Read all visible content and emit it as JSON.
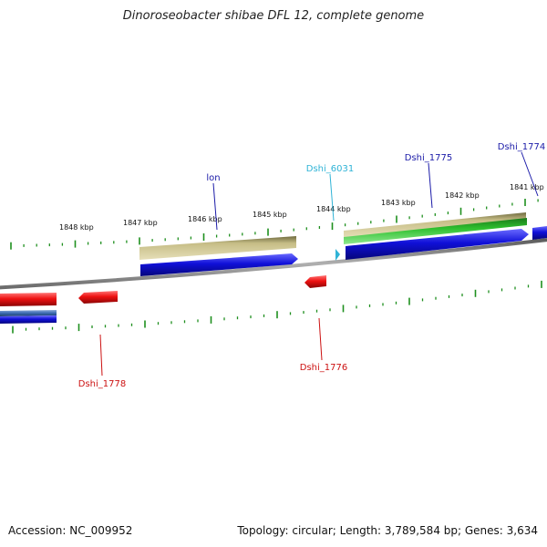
{
  "title": "Dinoroseobacter shibae DFL 12, complete genome",
  "footer": {
    "accession": "Accession: NC_009952",
    "summary": "Topology: circular; Length: 3,789,584 bp; Genes: 3,634"
  },
  "colors": {
    "backbone": "#8a8a8a",
    "tick": "#1e8f1e",
    "cds_forward": "#1010d8",
    "cds_reverse": "#ee1111",
    "gene_feature": "#c6bd86",
    "green_feature": "#2fc02f",
    "label_blue": "#1a1aa8",
    "label_red": "#cc1111",
    "label_cyan": "#2fb3d6"
  },
  "scale": {
    "labels": [
      "1848 kbp",
      "1847 kbp",
      "1846 kbp",
      "1845 kbp",
      "1844 kbp",
      "1843 kbp",
      "1842 kbp",
      "1841 kbp"
    ]
  },
  "gene_labels": [
    {
      "text": "lon",
      "color": "#1a1aa8"
    },
    {
      "text": "Dshi_6031",
      "color": "#2fb3d6"
    },
    {
      "text": "Dshi_1775",
      "color": "#1a1aa8"
    },
    {
      "text": "Dshi_1774",
      "color": "#1a1aa8"
    },
    {
      "text": "Dshi_1778",
      "color": "#cc1111"
    },
    {
      "text": "Dshi_1776",
      "color": "#cc1111"
    }
  ]
}
